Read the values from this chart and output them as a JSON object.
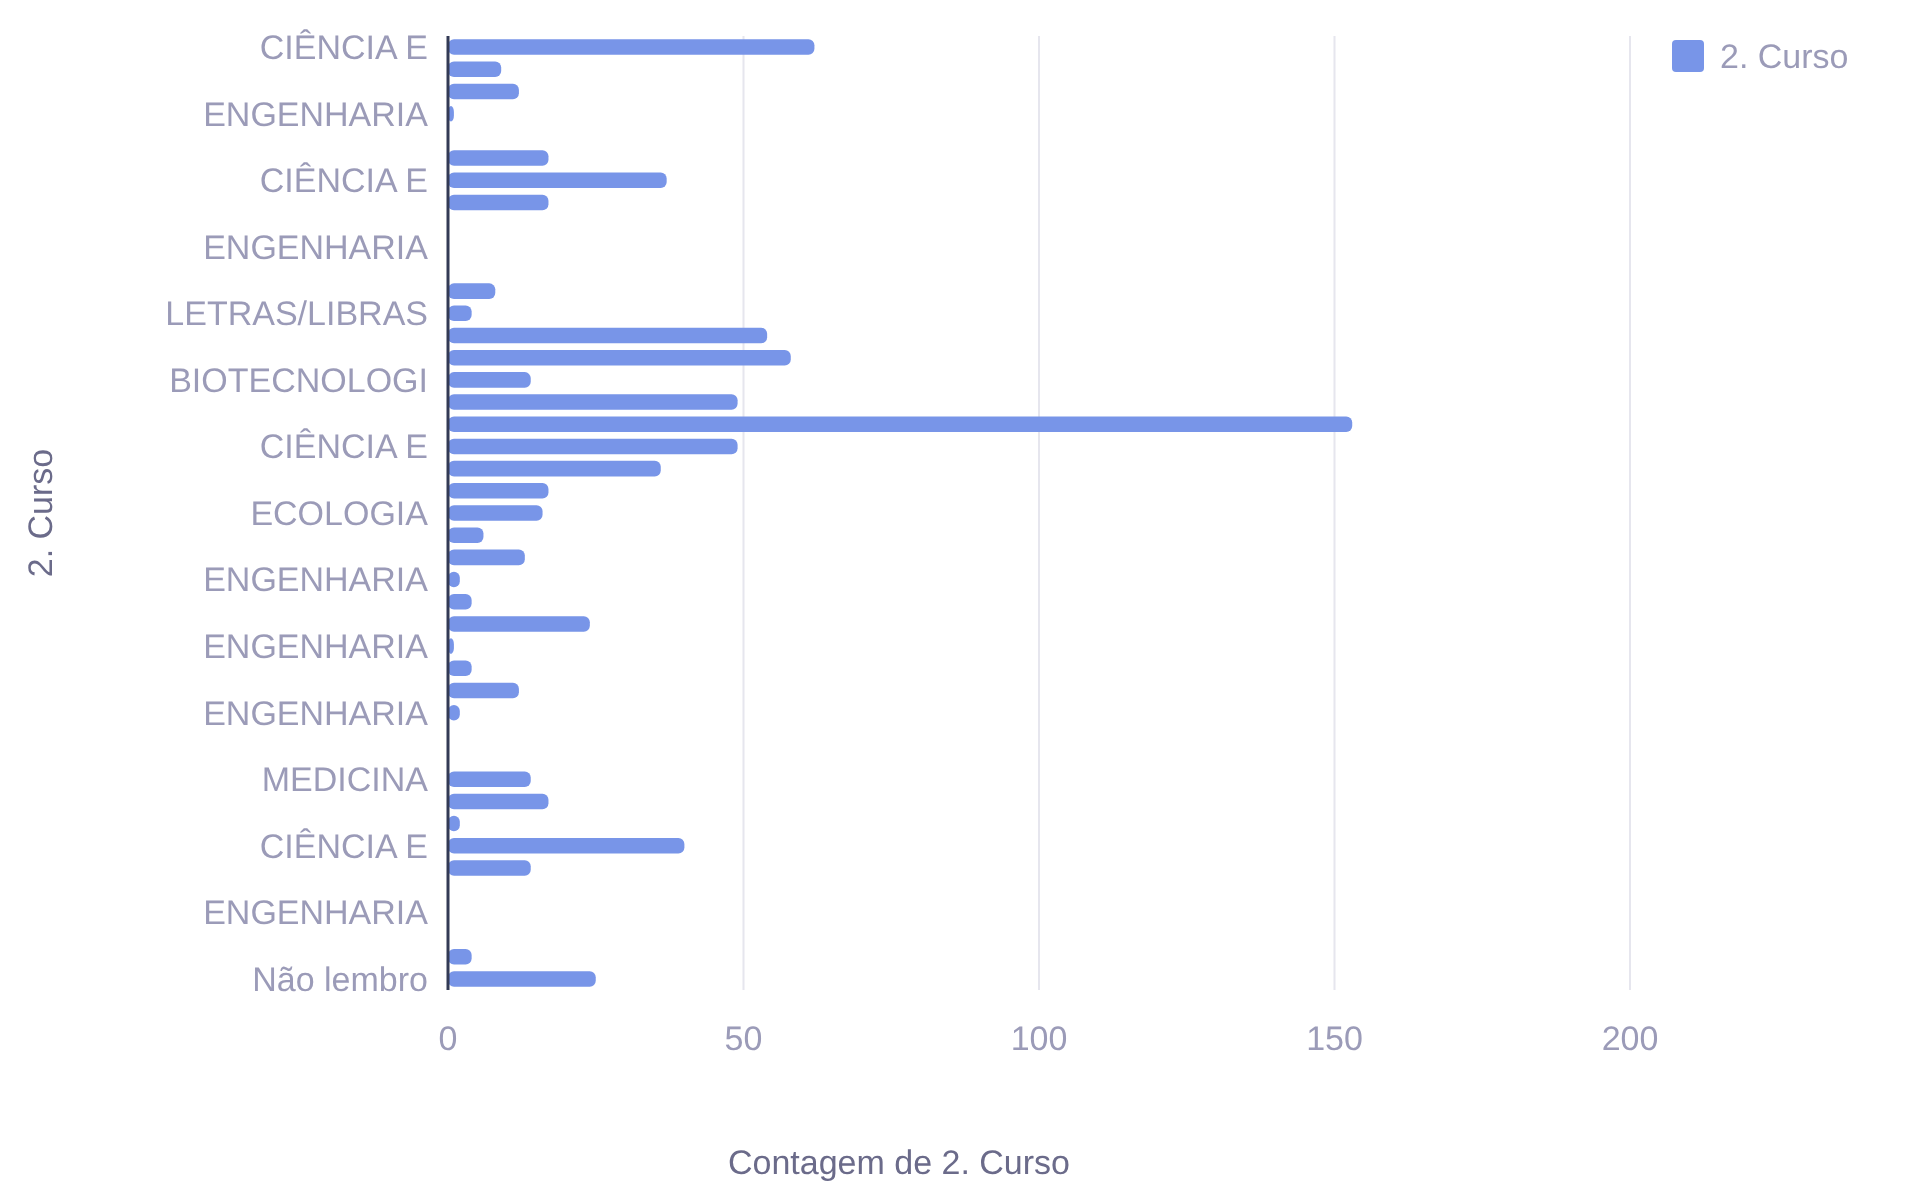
{
  "chart_data": {
    "type": "bar",
    "orientation": "horizontal",
    "xlabel": "Contagem de 2. Curso",
    "ylabel": "2. Curso",
    "categories": [
      "CIÊNCIA E",
      null,
      null,
      "ENGENHARIA",
      null,
      null,
      "CIÊNCIA E",
      null,
      null,
      "ENGENHARIA",
      null,
      null,
      "LETRAS/LIBRAS",
      null,
      null,
      "BIOTECNOLOGI",
      null,
      null,
      "CIÊNCIA E",
      null,
      null,
      "ECOLOGIA",
      null,
      null,
      "ENGENHARIA",
      null,
      null,
      "ENGENHARIA",
      null,
      null,
      "ENGENHARIA",
      null,
      null,
      "MEDICINA",
      null,
      null,
      "CIÊNCIA E",
      null,
      null,
      "ENGENHARIA",
      null,
      null,
      "Não lembro"
    ],
    "series": [
      {
        "name": "2. Curso",
        "color": "#7895e8",
        "values": [
          62,
          9,
          12,
          1,
          0,
          17,
          37,
          17,
          0,
          0,
          0,
          8,
          4,
          54,
          58,
          14,
          49,
          153,
          49,
          36,
          17,
          16,
          6,
          13,
          2,
          4,
          24,
          1,
          4,
          12,
          2,
          0,
          0,
          14,
          17,
          2,
          40,
          14,
          0,
          0,
          0,
          4,
          25
        ]
      }
    ],
    "xlim": [
      0,
      200
    ],
    "xticks": [
      0,
      50,
      100,
      150,
      200
    ],
    "grid": "x",
    "legend": "top right"
  }
}
